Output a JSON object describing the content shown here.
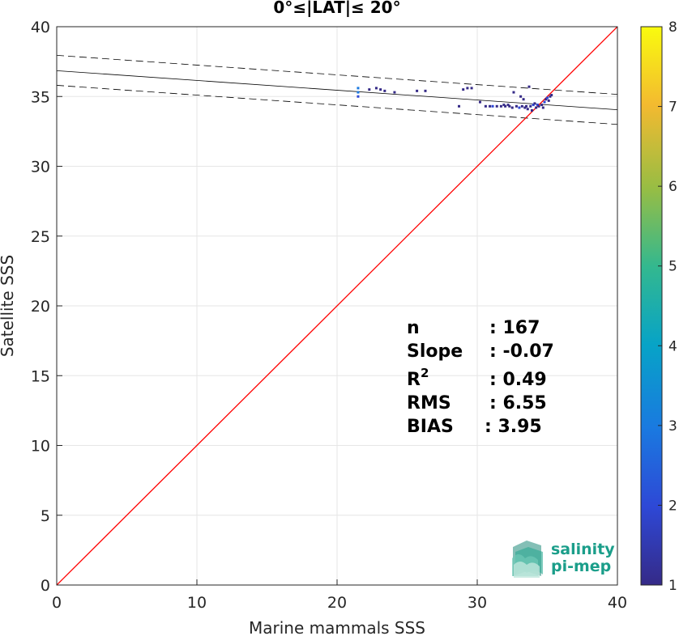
{
  "chart_data": {
    "type": "scatter",
    "title": "0°≤|LAT|≤ 20°",
    "xlabel": "Marine mammals SSS",
    "ylabel": "Satellite SSS",
    "xlim": [
      0,
      40
    ],
    "ylim": [
      0,
      40
    ],
    "xticks": [
      0,
      10,
      20,
      30,
      40
    ],
    "yticks": [
      0,
      5,
      10,
      15,
      20,
      25,
      30,
      35,
      40
    ],
    "grid": true,
    "colorbar": {
      "min": 1,
      "max": 8,
      "ticks": [
        1,
        2,
        3,
        4,
        5,
        6,
        7,
        8
      ],
      "colormap": "parula"
    },
    "identity_line": {
      "from": [
        0,
        0
      ],
      "to": [
        40,
        40
      ],
      "color": "#ff0000"
    },
    "fit_line": {
      "intercept": 36.85,
      "slope": -0.07,
      "color": "#000000"
    },
    "confidence_lines": [
      {
        "intercept": 37.95,
        "slope": -0.07
      },
      {
        "intercept": 35.8,
        "slope": -0.07
      }
    ],
    "points": [
      {
        "x": 21.5,
        "y": 35.6,
        "c": 3
      },
      {
        "x": 21.5,
        "y": 35.3,
        "c": 3
      },
      {
        "x": 21.5,
        "y": 35.0,
        "c": 2
      },
      {
        "x": 22.3,
        "y": 35.5,
        "c": 1
      },
      {
        "x": 22.8,
        "y": 35.6,
        "c": 1
      },
      {
        "x": 23.1,
        "y": 35.5,
        "c": 1
      },
      {
        "x": 23.4,
        "y": 35.4,
        "c": 1
      },
      {
        "x": 24.1,
        "y": 35.3,
        "c": 1
      },
      {
        "x": 25.7,
        "y": 35.4,
        "c": 1
      },
      {
        "x": 26.3,
        "y": 35.4,
        "c": 1
      },
      {
        "x": 28.7,
        "y": 34.3,
        "c": 1
      },
      {
        "x": 29.0,
        "y": 35.5,
        "c": 1
      },
      {
        "x": 29.3,
        "y": 35.6,
        "c": 1
      },
      {
        "x": 29.6,
        "y": 35.6,
        "c": 1
      },
      {
        "x": 30.2,
        "y": 34.6,
        "c": 1
      },
      {
        "x": 30.6,
        "y": 34.3,
        "c": 1
      },
      {
        "x": 30.9,
        "y": 34.3,
        "c": 1
      },
      {
        "x": 31.1,
        "y": 34.3,
        "c": 2
      },
      {
        "x": 31.4,
        "y": 34.3,
        "c": 1
      },
      {
        "x": 31.7,
        "y": 34.3,
        "c": 1
      },
      {
        "x": 32.0,
        "y": 34.3,
        "c": 1
      },
      {
        "x": 32.2,
        "y": 34.4,
        "c": 1
      },
      {
        "x": 32.5,
        "y": 34.2,
        "c": 1
      },
      {
        "x": 32.6,
        "y": 35.3,
        "c": 1
      },
      {
        "x": 32.8,
        "y": 34.3,
        "c": 1
      },
      {
        "x": 33.0,
        "y": 34.2,
        "c": 2
      },
      {
        "x": 33.1,
        "y": 35.0,
        "c": 1
      },
      {
        "x": 33.2,
        "y": 34.3,
        "c": 1
      },
      {
        "x": 33.3,
        "y": 34.8,
        "c": 1
      },
      {
        "x": 33.4,
        "y": 34.2,
        "c": 1
      },
      {
        "x": 33.6,
        "y": 34.1,
        "c": 1
      },
      {
        "x": 33.7,
        "y": 35.7,
        "c": 1
      },
      {
        "x": 33.8,
        "y": 34.3,
        "c": 1
      },
      {
        "x": 33.9,
        "y": 34.0,
        "c": 1
      },
      {
        "x": 34.0,
        "y": 34.4,
        "c": 2
      },
      {
        "x": 34.1,
        "y": 34.5,
        "c": 1
      },
      {
        "x": 34.2,
        "y": 34.2,
        "c": 1
      },
      {
        "x": 34.3,
        "y": 34.4,
        "c": 2
      },
      {
        "x": 34.4,
        "y": 34.3,
        "c": 1
      },
      {
        "x": 34.6,
        "y": 34.4,
        "c": 1
      },
      {
        "x": 34.7,
        "y": 34.2,
        "c": 1
      },
      {
        "x": 34.8,
        "y": 34.6,
        "c": 2
      },
      {
        "x": 34.9,
        "y": 34.8,
        "c": 1
      },
      {
        "x": 35.0,
        "y": 34.9,
        "c": 2
      },
      {
        "x": 35.1,
        "y": 34.7,
        "c": 1
      },
      {
        "x": 35.2,
        "y": 35.0,
        "c": 1
      },
      {
        "x": 35.3,
        "y": 35.1,
        "c": 1
      },
      {
        "x": 33.5,
        "y": 34.3,
        "c": 1
      },
      {
        "x": 32.3,
        "y": 34.3,
        "c": 1
      },
      {
        "x": 31.9,
        "y": 34.4,
        "c": 1
      }
    ]
  },
  "stats": [
    {
      "label": "n",
      "value": ": 167"
    },
    {
      "label": "Slope",
      "value": ": -0.07"
    },
    {
      "label": "R",
      "value": ": 0.49"
    },
    {
      "label": "RMS",
      "value": ": 6.55"
    },
    {
      "label": "BIAS",
      "value": ": 3.95"
    }
  ],
  "r_superscript": "2",
  "logo": {
    "line1": "salinity",
    "line2": "pi-mep"
  }
}
